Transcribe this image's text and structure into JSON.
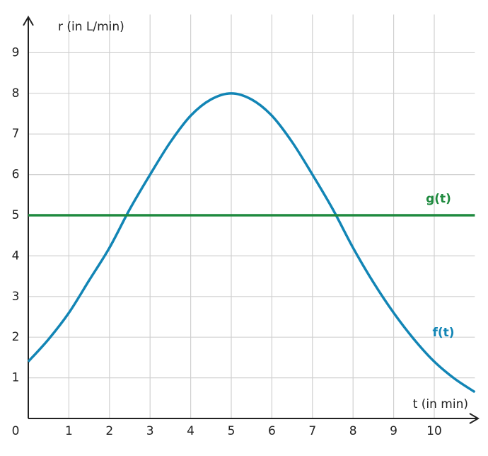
{
  "chart_data": {
    "type": "line",
    "x_label": "t (in min)",
    "y_label": "r (in L/min)",
    "xlim": [
      0,
      11
    ],
    "ylim": [
      0,
      9.8
    ],
    "xticks": [
      0,
      1,
      2,
      3,
      4,
      5,
      6,
      7,
      8,
      9,
      10
    ],
    "yticks": [
      1,
      2,
      3,
      4,
      5,
      6,
      7,
      8,
      9
    ],
    "grid": true,
    "series": [
      {
        "name": "f(t)",
        "color": "#1285b5",
        "x": [
          0,
          0.5,
          1,
          1.5,
          2,
          2.5,
          3,
          3.5,
          4,
          4.5,
          5,
          5.5,
          6,
          6.5,
          7,
          7.5,
          8,
          8.5,
          9,
          9.5,
          10,
          10.5,
          11
        ],
        "values": [
          1.4,
          1.95,
          2.6,
          3.4,
          4.2,
          5.15,
          6.0,
          6.8,
          7.45,
          7.85,
          8.0,
          7.85,
          7.45,
          6.8,
          6.0,
          5.15,
          4.2,
          3.35,
          2.6,
          1.95,
          1.4,
          0.98,
          0.65
        ]
      },
      {
        "name": "g(t)",
        "color": "#1f8a3f",
        "x": [
          0,
          11
        ],
        "values": [
          5,
          5
        ]
      }
    ]
  }
}
